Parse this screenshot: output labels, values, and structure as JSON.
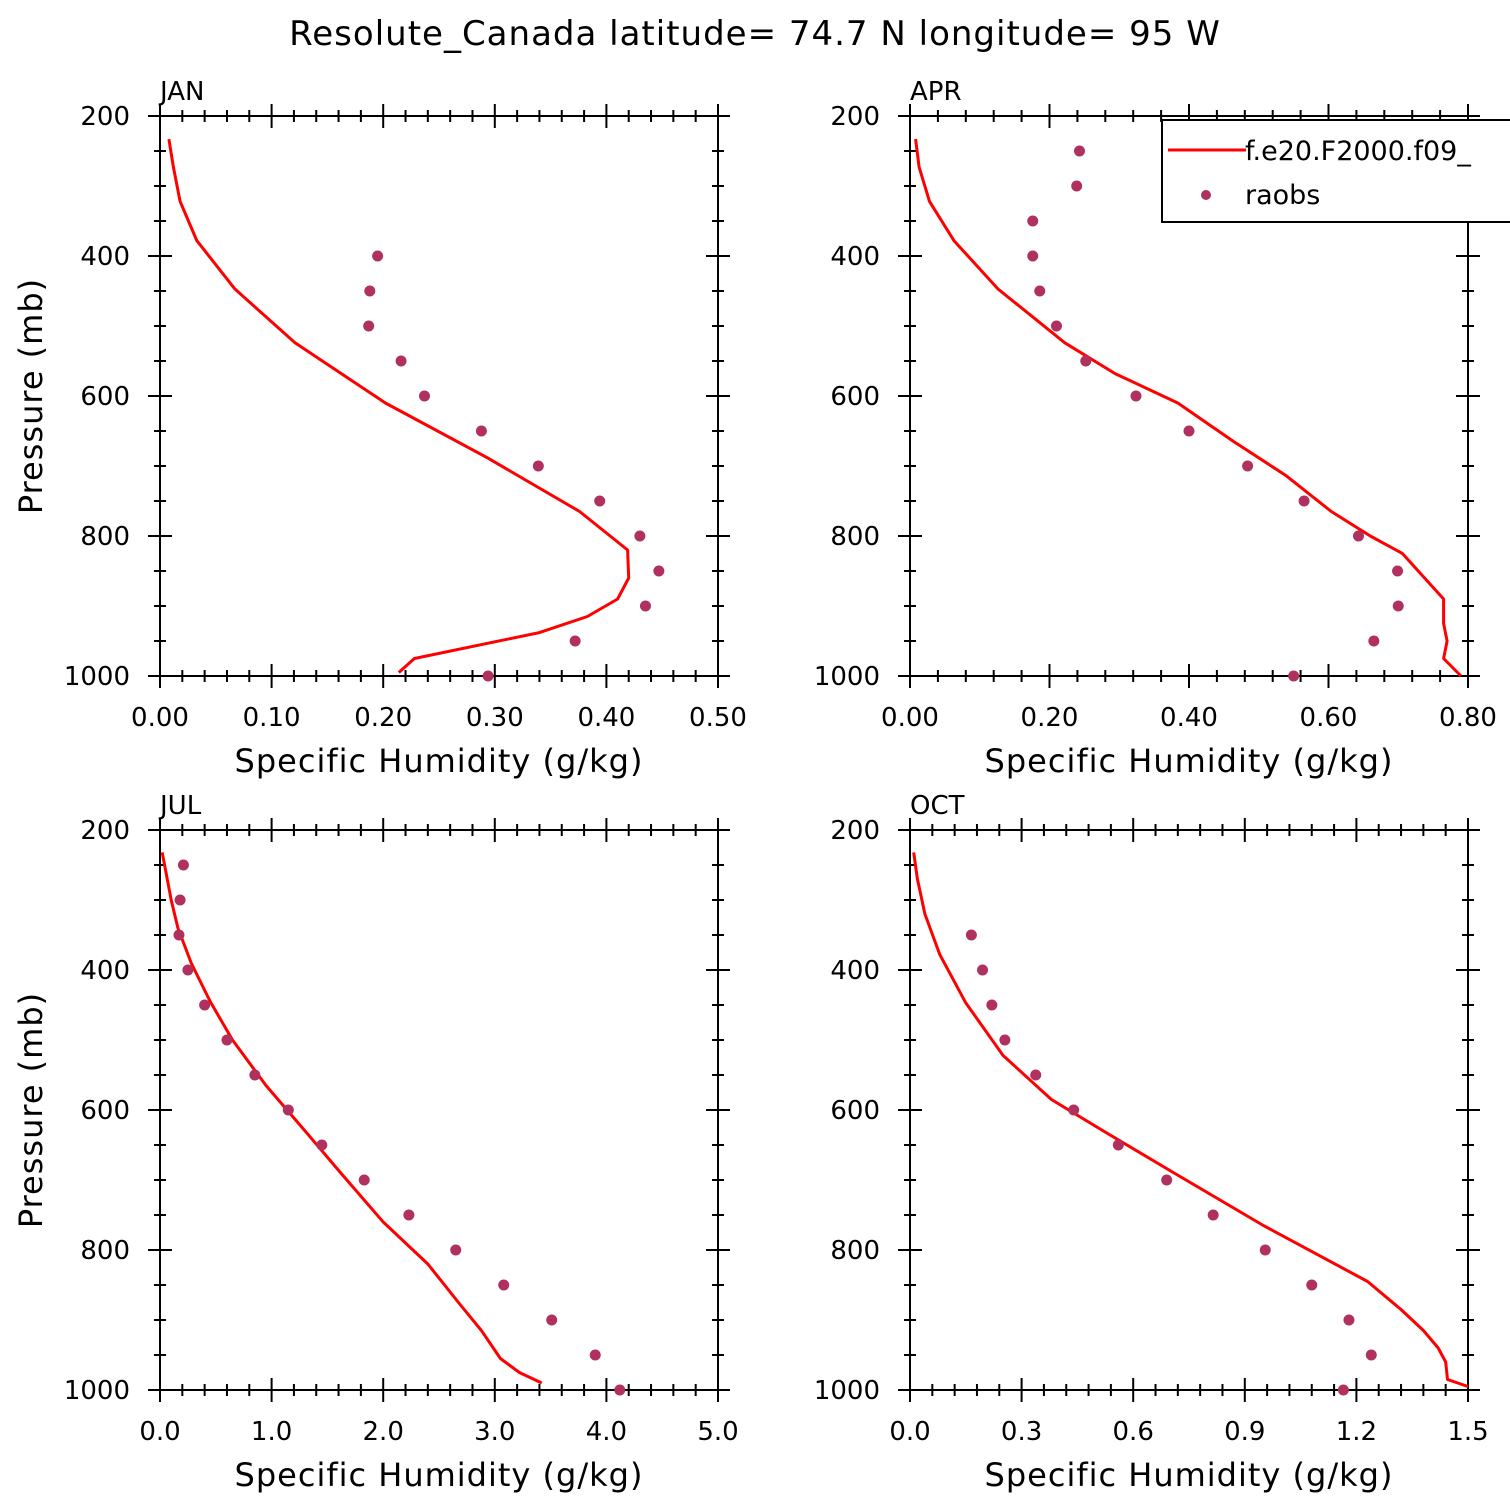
{
  "title": "Resolute_Canada  latitude= 74.7 N longitude= 95 W",
  "colors": {
    "model_line": "#ff0000",
    "raobs_marker": "#b03060",
    "axes": "#000000"
  },
  "legend": {
    "entries": [
      "f.e20.F2000.f09_",
      "raobs"
    ],
    "placement": "top-right of APR panel"
  },
  "chart_data": [
    {
      "type": "line",
      "panel": "JAN",
      "xlabel": "Specific Humidity (g/kg)",
      "ylabel": "Pressure (mb)",
      "xlim": [
        0.0,
        0.5
      ],
      "ylim": [
        200,
        1000
      ],
      "y_reversed": true,
      "xticks": [
        "0.00",
        "0.10",
        "0.20",
        "0.30",
        "0.40",
        "0.50"
      ],
      "xtick_values": [
        0,
        0.1,
        0.2,
        0.3,
        0.4,
        0.5
      ],
      "yticks": [
        "200",
        "400",
        "600",
        "800",
        "1000"
      ],
      "ytick_values": [
        200,
        400,
        600,
        800,
        1000
      ],
      "series": [
        {
          "name": "f.e20.F2000.f09_",
          "style": "line",
          "x": [
            0.008,
            0.012,
            0.018,
            0.033,
            0.067,
            0.121,
            0.202,
            0.293,
            0.376,
            0.419,
            0.42,
            0.41,
            0.383,
            0.34,
            0.228,
            0.214
          ],
          "y": [
            233,
            273,
            322,
            378,
            447,
            524,
            610,
            688,
            765,
            820,
            860,
            890,
            915,
            938,
            975,
            995
          ]
        },
        {
          "name": "raobs",
          "style": "marker",
          "x": [
            0.195,
            0.188,
            0.187,
            0.216,
            0.237,
            0.288,
            0.339,
            0.394,
            0.43,
            0.447,
            0.435,
            0.372,
            0.294
          ],
          "y": [
            400,
            450,
            500,
            550,
            600,
            650,
            700,
            750,
            800,
            850,
            900,
            950,
            1000
          ]
        }
      ]
    },
    {
      "type": "line",
      "panel": "APR",
      "xlabel": "Specific Humidity (g/kg)",
      "ylabel": "",
      "xlim": [
        0.0,
        0.8
      ],
      "ylim": [
        200,
        1000
      ],
      "y_reversed": true,
      "xticks": [
        "0.00",
        "0.20",
        "0.40",
        "0.60",
        "0.80"
      ],
      "xtick_values": [
        0,
        0.2,
        0.4,
        0.6,
        0.8
      ],
      "yticks": [
        "200",
        "400",
        "600",
        "800",
        "1000"
      ],
      "ytick_values": [
        200,
        400,
        600,
        800,
        1000
      ],
      "series": [
        {
          "name": "f.e20.F2000.f09_",
          "style": "line",
          "x": [
            0.008,
            0.013,
            0.028,
            0.063,
            0.126,
            0.222,
            0.294,
            0.384,
            0.464,
            0.538,
            0.604,
            0.66,
            0.706,
            0.765,
            0.765,
            0.77,
            0.765,
            0.79
          ],
          "y": [
            233,
            273,
            322,
            378,
            447,
            524,
            568,
            610,
            665,
            713,
            765,
            800,
            825,
            890,
            925,
            950,
            975,
            1000
          ]
        },
        {
          "name": "raobs",
          "style": "marker",
          "x": [
            0.243,
            0.239,
            0.176,
            0.176,
            0.186,
            0.21,
            0.252,
            0.324,
            0.4,
            0.484,
            0.565,
            0.643,
            0.699,
            0.7,
            0.665,
            0.55
          ],
          "y": [
            250,
            300,
            350,
            400,
            450,
            500,
            550,
            600,
            650,
            700,
            750,
            800,
            850,
            900,
            950,
            1000
          ]
        }
      ]
    },
    {
      "type": "line",
      "panel": "JUL",
      "xlabel": "Specific Humidity (g/kg)",
      "ylabel": "Pressure (mb)",
      "xlim": [
        0.0,
        5.0
      ],
      "ylim": [
        200,
        1000
      ],
      "y_reversed": true,
      "xticks": [
        "0.0",
        "1.0",
        "2.0",
        "3.0",
        "4.0",
        "5.0"
      ],
      "xtick_values": [
        0,
        1,
        2,
        3,
        4,
        5
      ],
      "yticks": [
        "200",
        "400",
        "600",
        "800",
        "1000"
      ],
      "ytick_values": [
        200,
        400,
        600,
        800,
        1000
      ],
      "series": [
        {
          "name": "f.e20.F2000.f09_",
          "style": "line",
          "x": [
            0.02,
            0.1,
            0.16,
            0.28,
            0.45,
            0.65,
            0.95,
            1.3,
            1.62,
            2.0,
            2.4,
            2.7,
            2.88,
            3.05,
            3.22,
            3.42
          ],
          "y": [
            232,
            300,
            340,
            390,
            445,
            500,
            565,
            630,
            690,
            760,
            820,
            880,
            915,
            955,
            975,
            990
          ]
        },
        {
          "name": "raobs",
          "style": "marker",
          "x": [
            0.21,
            0.18,
            0.17,
            0.25,
            0.4,
            0.6,
            0.85,
            1.15,
            1.45,
            1.83,
            2.23,
            2.65,
            3.08,
            3.51,
            3.9,
            4.12
          ],
          "y": [
            250,
            300,
            350,
            400,
            450,
            500,
            550,
            600,
            650,
            700,
            750,
            800,
            850,
            900,
            950,
            1000
          ]
        }
      ]
    },
    {
      "type": "line",
      "panel": "OCT",
      "xlabel": "Specific Humidity (g/kg)",
      "ylabel": "",
      "xlim": [
        0.0,
        1.5
      ],
      "ylim": [
        200,
        1000
      ],
      "y_reversed": true,
      "xticks": [
        "0.0",
        "0.3",
        "0.6",
        "0.9",
        "1.2",
        "1.5"
      ],
      "xtick_values": [
        0,
        0.3,
        0.6,
        0.9,
        1.2,
        1.5
      ],
      "yticks": [
        "200",
        "400",
        "600",
        "800",
        "1000"
      ],
      "ytick_values": [
        200,
        400,
        600,
        800,
        1000
      ],
      "series": [
        {
          "name": "f.e20.F2000.f09_",
          "style": "line",
          "x": [
            0.01,
            0.02,
            0.04,
            0.08,
            0.15,
            0.25,
            0.38,
            0.52,
            0.71,
            0.95,
            1.23,
            1.32,
            1.38,
            1.42,
            1.44,
            1.445,
            1.5
          ],
          "y": [
            232,
            270,
            320,
            378,
            447,
            522,
            585,
            630,
            690,
            765,
            845,
            885,
            915,
            940,
            960,
            985,
            995
          ]
        },
        {
          "name": "raobs",
          "style": "marker",
          "x": [
            0.165,
            0.195,
            0.22,
            0.255,
            0.338,
            0.44,
            0.56,
            0.69,
            0.815,
            0.955,
            1.08,
            1.18,
            1.24,
            1.165
          ],
          "y": [
            350,
            400,
            450,
            500,
            550,
            600,
            650,
            700,
            750,
            800,
            850,
            900,
            950,
            1000
          ]
        }
      ]
    }
  ]
}
